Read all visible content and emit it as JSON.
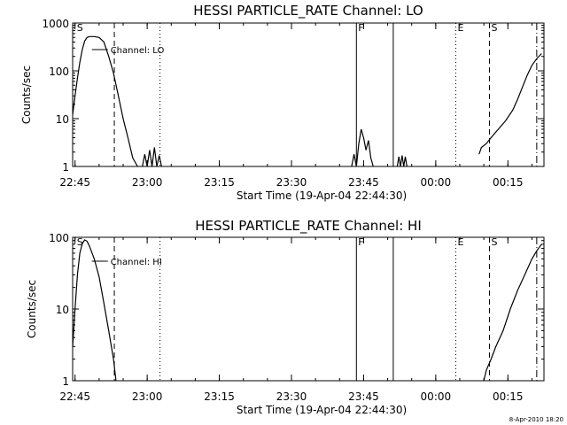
{
  "chart_data": [
    {
      "type": "line",
      "title": "HESSI PARTICLE_RATE Channel: LO",
      "xlabel": "Start Time (19-Apr-04 22:44:30)",
      "ylabel": "Counts/sec",
      "yscale": "log",
      "ylim": [
        1,
        1000
      ],
      "xlim": [
        "22:44:30",
        "00:22:30"
      ],
      "grid": false,
      "legend_position": "top-left",
      "x_ticks": [
        "22:45",
        "23:00",
        "23:15",
        "23:30",
        "23:45",
        "00:00",
        "00:15"
      ],
      "y_ticks": [
        "1",
        "10",
        "100",
        "1000"
      ],
      "series": [
        {
          "name": "Channel: LO",
          "segments": [
            [
              [
                "22:44:30",
                12
              ],
              [
                "22:45:00",
                30
              ],
              [
                "22:45:30",
                70
              ],
              [
                "22:46:00",
                150
              ],
              [
                "22:46:30",
                280
              ],
              [
                "22:47:00",
                420
              ],
              [
                "22:47:30",
                500
              ],
              [
                "22:48:00",
                520
              ],
              [
                "22:49:00",
                520
              ],
              [
                "22:50:00",
                500
              ],
              [
                "22:51:00",
                400
              ],
              [
                "22:52:00",
                200
              ],
              [
                "22:53:00",
                90
              ],
              [
                "22:54:00",
                30
              ],
              [
                "22:55:00",
                10
              ],
              [
                "22:56:00",
                4
              ],
              [
                "22:57:00",
                1.5
              ],
              [
                "22:58:00",
                1
              ]
            ],
            [
              [
                "22:59:00",
                1
              ],
              [
                "22:59:30",
                1.8
              ],
              [
                "23:00:00",
                1
              ],
              [
                "23:00:30",
                2.2
              ],
              [
                "23:01:00",
                1
              ],
              [
                "23:01:30",
                2.5
              ],
              [
                "23:02:00",
                1
              ],
              [
                "23:02:30",
                1.7
              ],
              [
                "23:03:00",
                1
              ]
            ],
            [
              [
                "23:42:30",
                1
              ],
              [
                "23:43:00",
                1.8
              ],
              [
                "23:43:30",
                1
              ],
              [
                "23:44:00",
                3
              ],
              [
                "23:44:30",
                6
              ],
              [
                "23:45:00",
                4
              ],
              [
                "23:45:30",
                2.2
              ],
              [
                "23:46:00",
                3.5
              ],
              [
                "23:46:30",
                1.5
              ],
              [
                "23:47:00",
                1
              ]
            ],
            [
              [
                "23:52:00",
                1
              ],
              [
                "23:52:20",
                1.6
              ],
              [
                "23:52:40",
                1
              ],
              [
                "23:53:00",
                1.7
              ],
              [
                "23:53:20",
                1
              ],
              [
                "23:53:40",
                1.6
              ],
              [
                "23:54:00",
                1
              ]
            ],
            [
              [
                "00:09:00",
                1.8
              ],
              [
                "00:09:30",
                2.5
              ],
              [
                "00:10:30",
                3
              ],
              [
                "00:11:30",
                4
              ],
              [
                "00:13:00",
                6
              ],
              [
                "00:14:30",
                9
              ],
              [
                "00:16:00",
                15
              ],
              [
                "00:17:00",
                25
              ],
              [
                "00:18:00",
                45
              ],
              [
                "00:19:00",
                80
              ],
              [
                "00:20:00",
                130
              ],
              [
                "00:21:00",
                180
              ],
              [
                "00:22:00",
                230
              ]
            ]
          ]
        }
      ],
      "annotations": [
        {
          "label": "S",
          "time": "22:45:00",
          "line": "none"
        },
        {
          "label": "",
          "time": "22:53:10",
          "line": "dashed"
        },
        {
          "label": "",
          "time": "23:02:40",
          "line": "dotted"
        },
        {
          "label": "F",
          "time": "23:43:30",
          "line": "solid"
        },
        {
          "label": "",
          "time": "23:51:10",
          "line": "solid"
        },
        {
          "label": "E",
          "time": "00:04:10",
          "line": "dotted"
        },
        {
          "label": "S",
          "time": "00:11:10",
          "line": "dashed"
        },
        {
          "label": "",
          "time": "00:21:00",
          "line": "dashdot"
        }
      ]
    },
    {
      "type": "line",
      "title": "HESSI PARTICLE_RATE Channel: HI",
      "xlabel": "Start Time (19-Apr-04 22:44:30)",
      "ylabel": "Counts/sec",
      "yscale": "log",
      "ylim": [
        1,
        100
      ],
      "xlim": [
        "22:44:30",
        "00:22:30"
      ],
      "grid": false,
      "legend_position": "top-left",
      "x_ticks": [
        "22:45",
        "23:00",
        "23:15",
        "23:30",
        "23:45",
        "00:00",
        "00:15"
      ],
      "y_ticks": [
        "1",
        "10",
        "100"
      ],
      "series": [
        {
          "name": "Channel: HI",
          "segments": [
            [
              [
                "22:44:30",
                3
              ],
              [
                "22:45:00",
                10
              ],
              [
                "22:45:30",
                30
              ],
              [
                "22:46:00",
                60
              ],
              [
                "22:46:30",
                82
              ],
              [
                "22:47:00",
                92
              ],
              [
                "22:47:30",
                88
              ],
              [
                "22:48:00",
                75
              ],
              [
                "22:49:00",
                50
              ],
              [
                "22:50:00",
                28
              ],
              [
                "22:51:00",
                12
              ],
              [
                "22:52:00",
                5
              ],
              [
                "22:53:00",
                2
              ],
              [
                "22:53:30",
                1
              ]
            ],
            [
              [
                "00:10:00",
                1
              ],
              [
                "00:10:30",
                1.4
              ],
              [
                "00:11:30",
                2
              ],
              [
                "00:12:30",
                3
              ],
              [
                "00:14:00",
                5
              ],
              [
                "00:15:30",
                10
              ],
              [
                "00:17:00",
                18
              ],
              [
                "00:18:30",
                30
              ],
              [
                "00:20:00",
                50
              ],
              [
                "00:21:00",
                65
              ],
              [
                "00:22:00",
                80
              ]
            ]
          ]
        }
      ],
      "annotations": [
        {
          "label": "S",
          "time": "22:45:00",
          "line": "none"
        },
        {
          "label": "",
          "time": "22:53:10",
          "line": "dashed"
        },
        {
          "label": "",
          "time": "23:02:40",
          "line": "dotted"
        },
        {
          "label": "F",
          "time": "23:43:30",
          "line": "solid"
        },
        {
          "label": "",
          "time": "23:51:10",
          "line": "solid"
        },
        {
          "label": "E",
          "time": "00:04:10",
          "line": "dotted"
        },
        {
          "label": "S",
          "time": "00:11:10",
          "line": "dashed"
        },
        {
          "label": "",
          "time": "00:21:00",
          "line": "dashdot"
        }
      ]
    }
  ],
  "footer": {
    "stamp": "8-Apr-2010 18:20"
  }
}
